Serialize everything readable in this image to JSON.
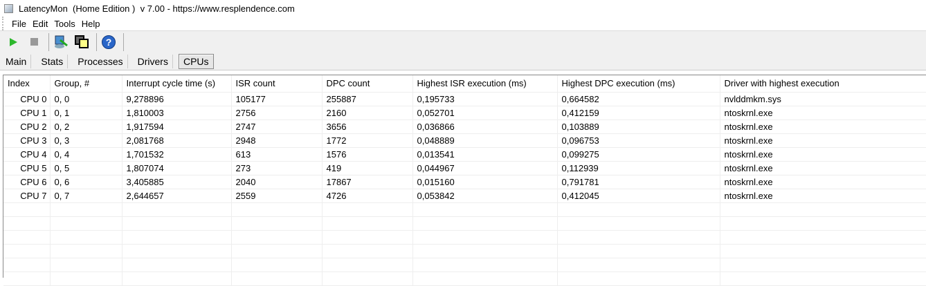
{
  "window": {
    "title": "LatencyMon  (Home Edition )  v 7.00 - https://www.resplendence.com"
  },
  "menu": [
    "File",
    "Edit",
    "Tools",
    "Help"
  ],
  "toolbar": {
    "icons": [
      "play-icon",
      "stop-icon",
      "driver-search-icon",
      "windows-icon",
      "help-icon"
    ]
  },
  "tabs": [
    {
      "label": "Main"
    },
    {
      "label": "Stats"
    },
    {
      "label": "Processes"
    },
    {
      "label": "Drivers"
    },
    {
      "label": "CPUs",
      "active": true
    }
  ],
  "table": {
    "columns": [
      "Index",
      "Group, #",
      "Interrupt cycle time (s)",
      "ISR count",
      "DPC count",
      "Highest ISR execution (ms)",
      "Highest DPC execution (ms)",
      "Driver with highest execution"
    ],
    "rows": [
      [
        "CPU 0",
        "0, 0",
        "9,278896",
        "105177",
        "255887",
        "0,195733",
        "0,664582",
        "nvlddmkm.sys"
      ],
      [
        "CPU 1",
        "0, 1",
        "1,810003",
        "2756",
        "2160",
        "0,052701",
        "0,412159",
        "ntoskrnl.exe"
      ],
      [
        "CPU 2",
        "0, 2",
        "1,917594",
        "2747",
        "3656",
        "0,036866",
        "0,103889",
        "ntoskrnl.exe"
      ],
      [
        "CPU 3",
        "0, 3",
        "2,081768",
        "2948",
        "1772",
        "0,048889",
        "0,096753",
        "ntoskrnl.exe"
      ],
      [
        "CPU 4",
        "0, 4",
        "1,701532",
        "613",
        "1576",
        "0,013541",
        "0,099275",
        "ntoskrnl.exe"
      ],
      [
        "CPU 5",
        "0, 5",
        "1,807074",
        "273",
        "419",
        "0,044967",
        "0,112939",
        "ntoskrnl.exe"
      ],
      [
        "CPU 6",
        "0, 6",
        "3,405885",
        "2040",
        "17867",
        "0,015160",
        "0,791781",
        "ntoskrnl.exe"
      ],
      [
        "CPU 7",
        "0, 7",
        "2,644657",
        "2559",
        "4726",
        "0,053842",
        "0,412045",
        "ntoskrnl.exe"
      ]
    ]
  }
}
